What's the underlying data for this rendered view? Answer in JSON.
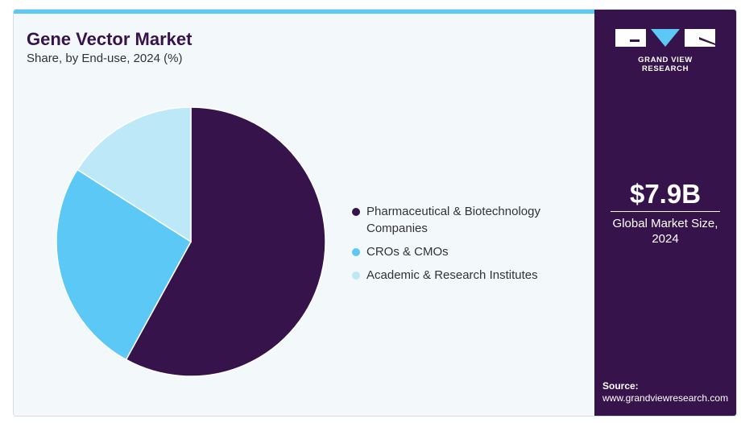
{
  "header": {
    "title": "Gene Vector Market",
    "subtitle": "Share, by End-use, 2024 (%)"
  },
  "brand": {
    "name": "GRAND VIEW RESEARCH"
  },
  "summary": {
    "value": "$7.9B",
    "caption_line1": "Global Market Size,",
    "caption_line2": "2024"
  },
  "source": {
    "label": "Source:",
    "url": "www.grandviewresearch.com"
  },
  "colors": {
    "dark": "#36134a",
    "blue": "#5bc8f5",
    "light": "#bde8f8",
    "accent": "#5bc8f5"
  },
  "chart_data": {
    "type": "pie",
    "title": "Gene Vector Market",
    "subtitle": "Share, by End-use, 2024 (%)",
    "categories": [
      "Pharmaceutical & Biotechnology Companies",
      "CROs & CMOs",
      "Academic & Research Institutes"
    ],
    "values": [
      58,
      26,
      16
    ],
    "colors": [
      "#36134a",
      "#5bc8f5",
      "#bde8f8"
    ],
    "legend_position": "right",
    "start_angle": "top, clockwise"
  }
}
